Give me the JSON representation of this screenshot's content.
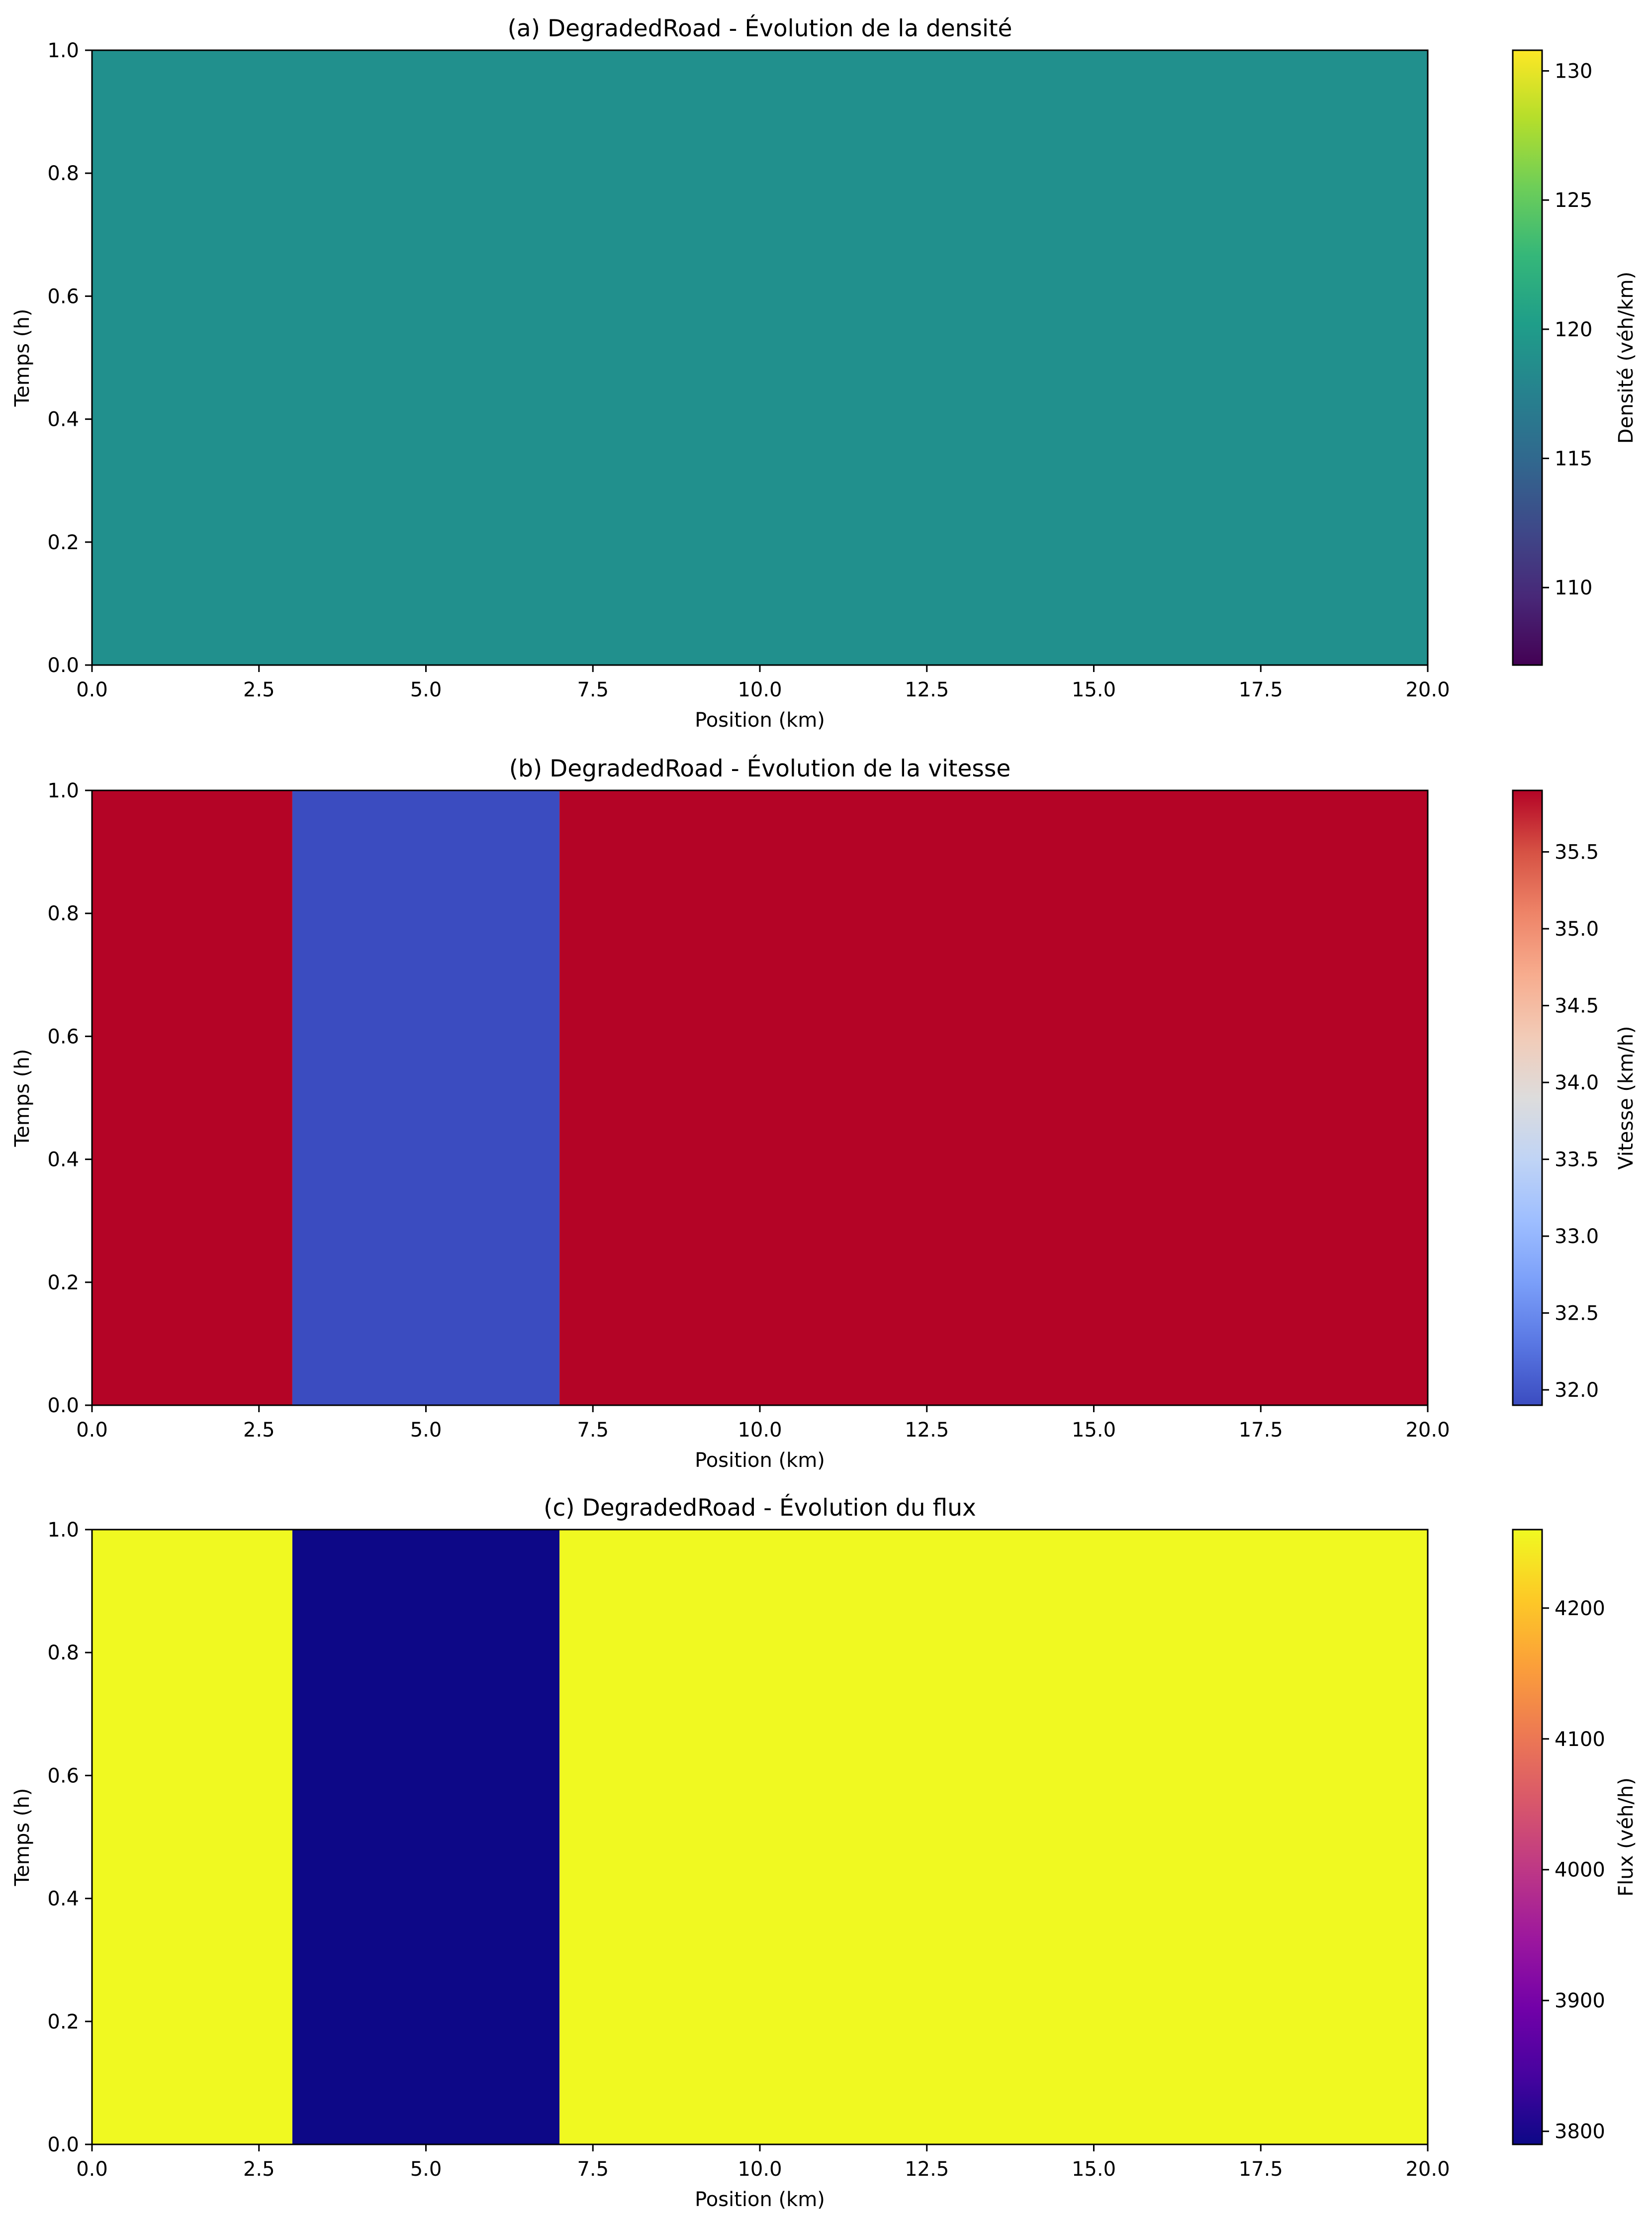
{
  "chart_data": [
    {
      "type": "heatmap",
      "title": "(a) DegradedRoad - Évolution de la densité",
      "xlabel": "Position (km)",
      "ylabel": "Temps (h)",
      "xlim": [
        0,
        20
      ],
      "ylim": [
        0,
        1
      ],
      "xticks": [
        "0.0",
        "2.5",
        "5.0",
        "7.5",
        "10.0",
        "12.5",
        "15.0",
        "17.5",
        "20.0"
      ],
      "yticks": [
        "0.0",
        "0.2",
        "0.4",
        "0.6",
        "0.8",
        "1.0"
      ],
      "colormap": "viridis",
      "colorbar": {
        "label": "Densité (véh/km)",
        "range": [
          107,
          130.8
        ],
        "ticks": [
          "110",
          "115",
          "120",
          "125",
          "130"
        ]
      },
      "segments": [
        {
          "x_start": 0,
          "x_end": 20,
          "value": 119,
          "color": "#21908d"
        }
      ]
    },
    {
      "type": "heatmap",
      "title": "(b) DegradedRoad - Évolution de la vitesse",
      "xlabel": "Position (km)",
      "ylabel": "Temps (h)",
      "xlim": [
        0,
        20
      ],
      "ylim": [
        0,
        1
      ],
      "xticks": [
        "0.0",
        "2.5",
        "5.0",
        "7.5",
        "10.0",
        "12.5",
        "15.0",
        "17.5",
        "20.0"
      ],
      "yticks": [
        "0.0",
        "0.2",
        "0.4",
        "0.6",
        "0.8",
        "1.0"
      ],
      "colormap": "coolwarm",
      "colorbar": {
        "label": "Vitesse (km/h)",
        "range": [
          31.9,
          35.9
        ],
        "ticks": [
          "32.0",
          "32.5",
          "33.0",
          "33.5",
          "34.0",
          "34.5",
          "35.0",
          "35.5"
        ]
      },
      "segments": [
        {
          "x_start": 0,
          "x_end": 3,
          "value": 35.9,
          "color": "#b40426"
        },
        {
          "x_start": 3,
          "x_end": 7,
          "value": 31.9,
          "color": "#3b4cc0"
        },
        {
          "x_start": 7,
          "x_end": 20,
          "value": 35.9,
          "color": "#b40426"
        }
      ]
    },
    {
      "type": "heatmap",
      "title": "(c) DegradedRoad - Évolution du flux",
      "xlabel": "Position (km)",
      "ylabel": "Temps (h)",
      "xlim": [
        0,
        20
      ],
      "ylim": [
        0,
        1
      ],
      "xticks": [
        "0.0",
        "2.5",
        "5.0",
        "7.5",
        "10.0",
        "12.5",
        "15.0",
        "17.5",
        "20.0"
      ],
      "yticks": [
        "0.0",
        "0.2",
        "0.4",
        "0.6",
        "0.8",
        "1.0"
      ],
      "colormap": "plasma",
      "colorbar": {
        "label": "Flux (véh/h)",
        "range": [
          3790,
          4260
        ],
        "ticks": [
          "3800",
          "3900",
          "4000",
          "4100",
          "4200"
        ]
      },
      "segments": [
        {
          "x_start": 0,
          "x_end": 3,
          "value": 4260,
          "color": "#f0f921"
        },
        {
          "x_start": 3,
          "x_end": 7,
          "value": 3790,
          "color": "#0d0887"
        },
        {
          "x_start": 7,
          "x_end": 20,
          "value": 4260,
          "color": "#f0f921"
        }
      ]
    }
  ]
}
